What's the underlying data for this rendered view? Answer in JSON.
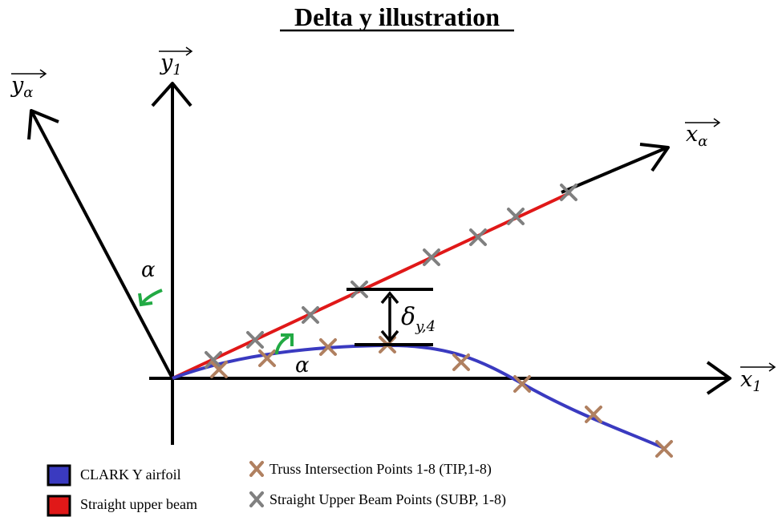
{
  "title": "Delta y illustration",
  "axes": {
    "y1": {
      "base": "y",
      "sub": "1"
    },
    "ya": {
      "base": "y",
      "sub": "α"
    },
    "xa": {
      "base": "x",
      "sub": "α"
    },
    "x1": {
      "base": "x",
      "sub": "1"
    }
  },
  "angle_symbol": "α",
  "delta": {
    "symbol": "δ",
    "sub": "y,4"
  },
  "colors": {
    "airfoil": "#3a3ac0",
    "beam": "#e01818",
    "tip_marker": "#b08060",
    "subp_marker": "#808080",
    "angle_arrow": "#22aa44",
    "axes": "#000000"
  },
  "legend": {
    "airfoil": "CLARK Y airfoil",
    "beam": "Straight upper beam",
    "tip": "Truss Intersection Points 1-8 (TIP,1-8)",
    "subp": "Straight Upper Beam Points (SUBP, 1-8)"
  }
}
